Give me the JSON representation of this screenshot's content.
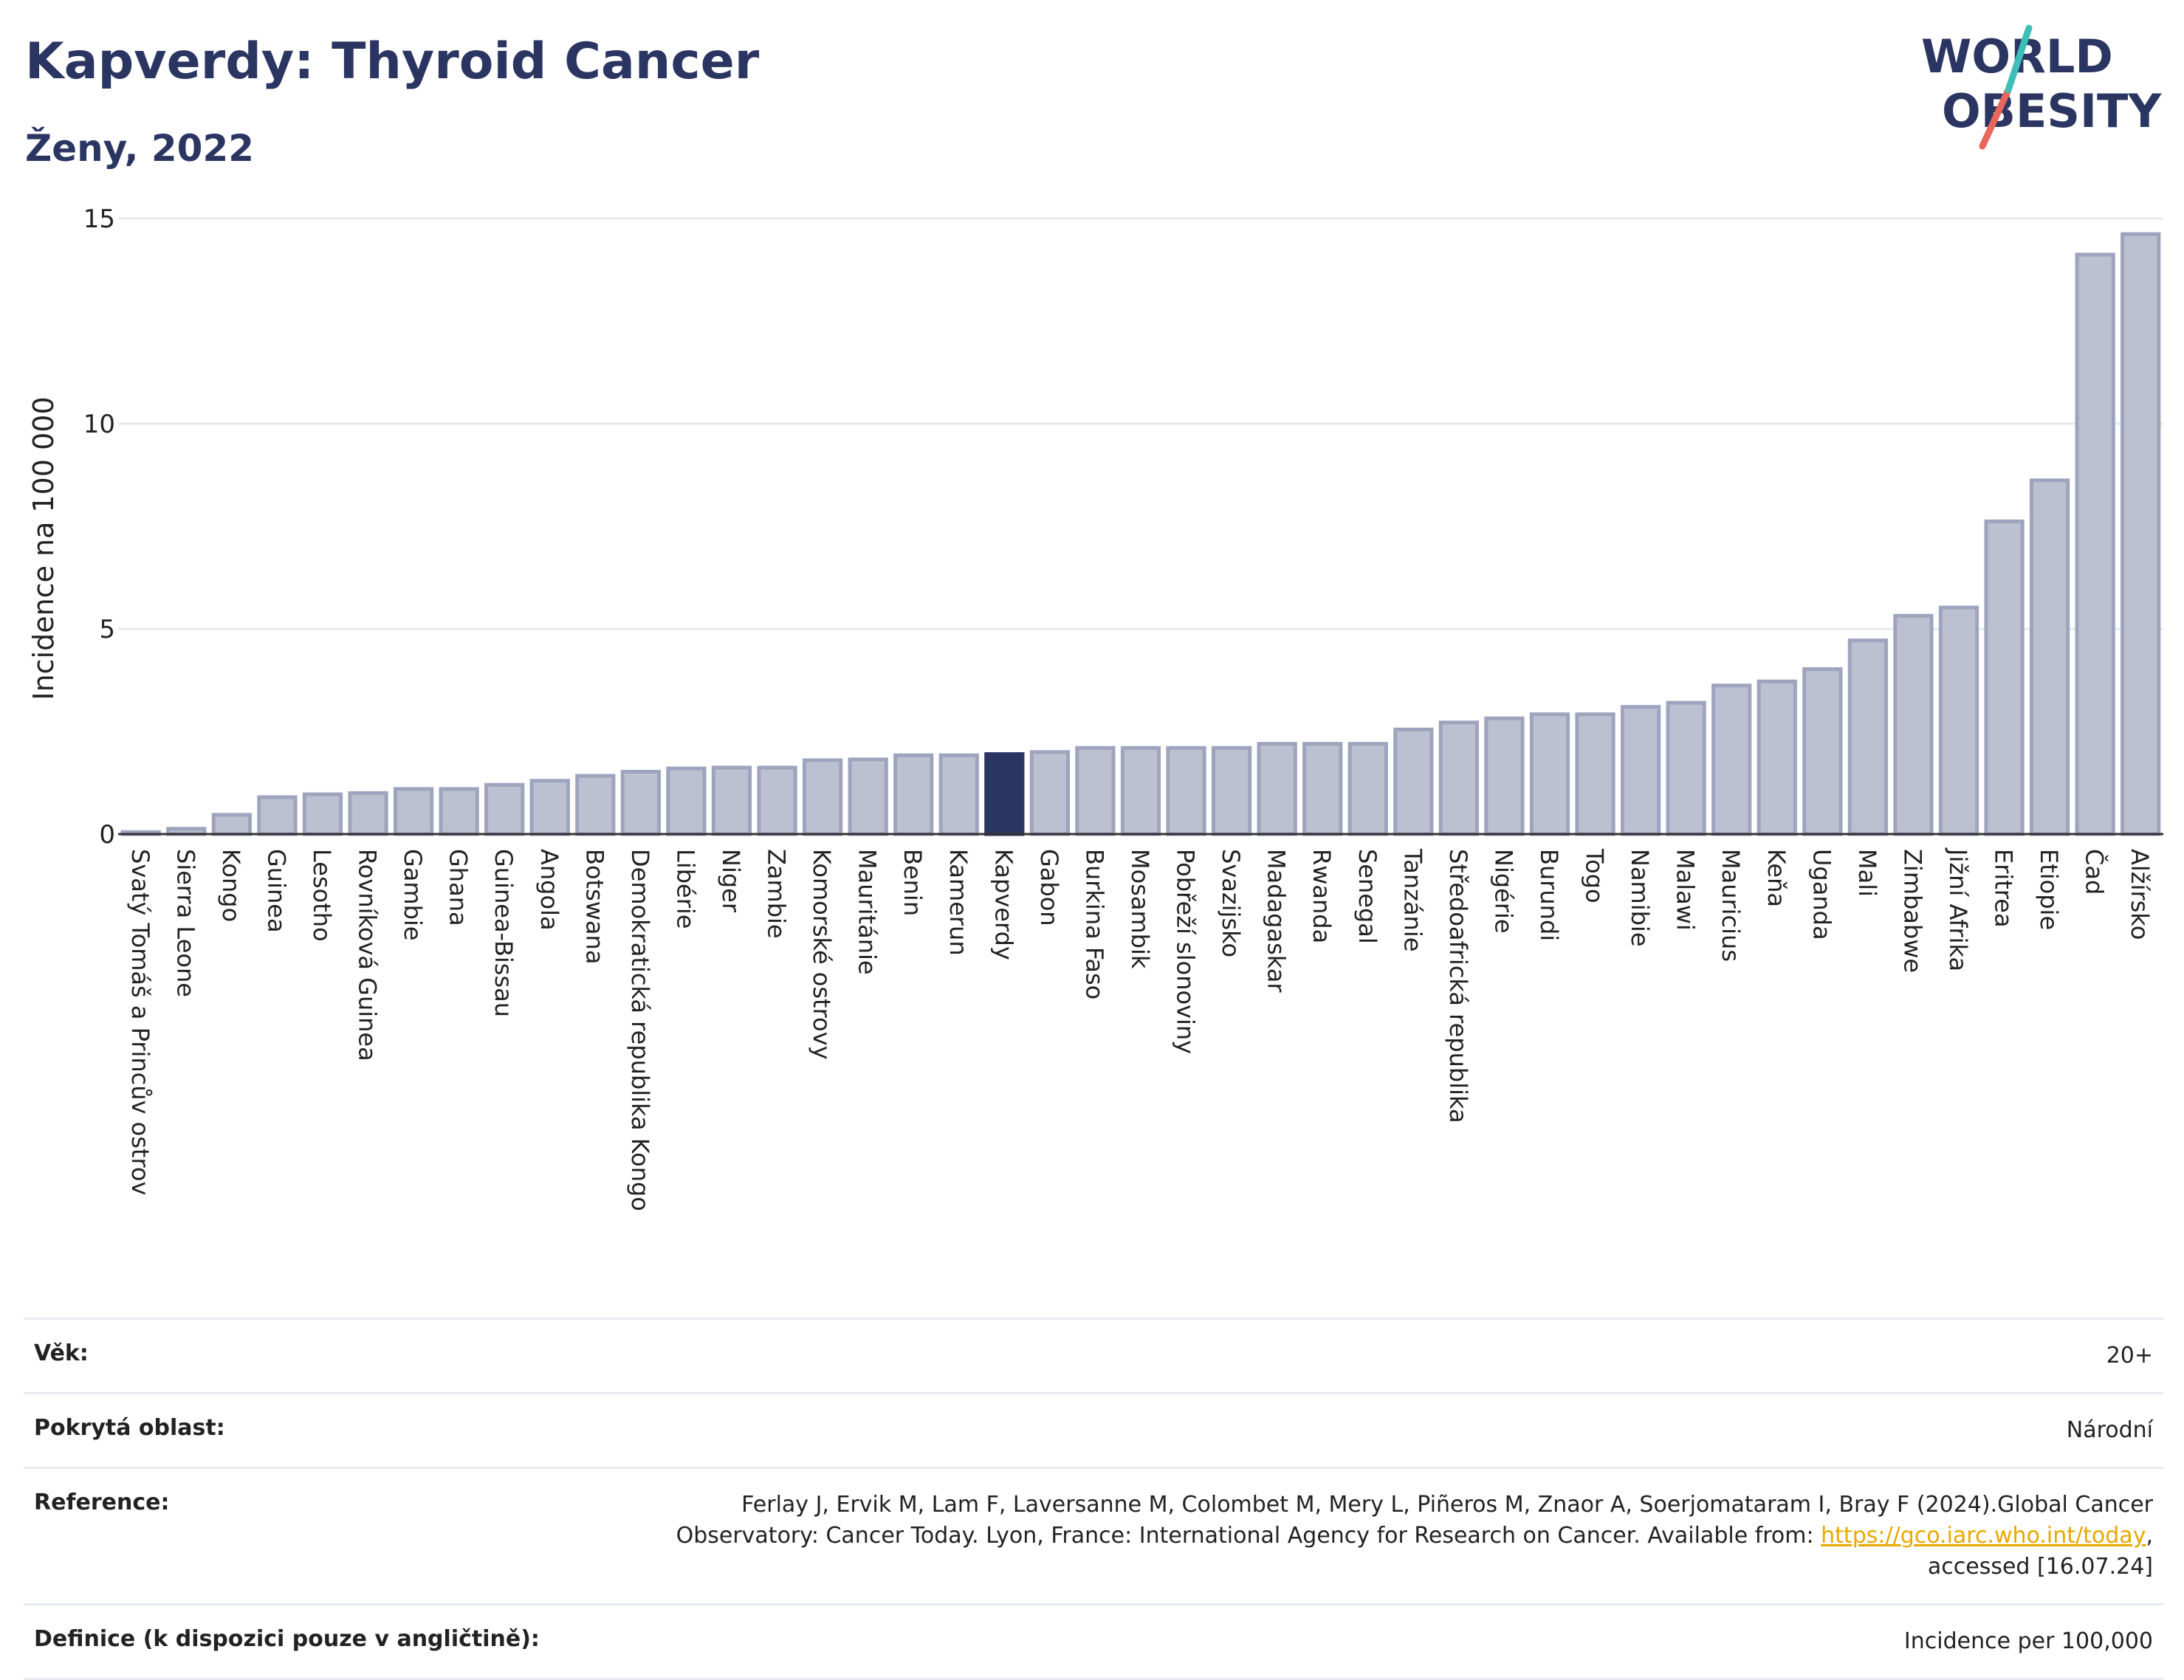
{
  "header": {
    "title": "Kapverdy: Thyroid Cancer",
    "subtitle": "Ženy, 2022",
    "logo_text_1": "WORLD",
    "logo_text_2": "OBESITY"
  },
  "chart_data": {
    "type": "bar",
    "ylabel": "Incidence na 100 000",
    "ylim": [
      0,
      15
    ],
    "yticks": [
      0,
      5,
      10,
      15
    ],
    "grid": true,
    "highlight": "Kapverdy",
    "highlight_color": "#2b3562",
    "bar_color": "#bcc0d0",
    "bar_edge_color": "#9ea4bd",
    "categories": [
      "Svatý Tomáš a Princův ostrov",
      "Sierra Leone",
      "Kongo",
      "Guinea",
      "Lesotho",
      "Rovníková Guinea",
      "Gambie",
      "Ghana",
      "Guinea-Bissau",
      "Angola",
      "Botswana",
      "Demokratická republika Kongo",
      "Libérie",
      "Niger",
      "Zambie",
      "Komorské ostrovy",
      "Mauritánie",
      "Benin",
      "Kamerun",
      "Kapverdy",
      "Gabon",
      "Burkina Faso",
      "Mosambik",
      "Pobřeží slonoviny",
      "Svazijsko",
      "Madagaskar",
      "Rwanda",
      "Senegal",
      "Tanzánie",
      "Středoafrická republika",
      "Nigérie",
      "Burundi",
      "Togo",
      "Namibie",
      "Malawi",
      "Mauricius",
      "Keňa",
      "Uganda",
      "Mali",
      "Zimbabwe",
      "Jižní Afrika",
      "Eritrea",
      "Etiopie",
      "Čad",
      "Alžírsko"
    ],
    "values": [
      0.05,
      0.13,
      0.47,
      0.9,
      0.97,
      1.0,
      1.1,
      1.1,
      1.2,
      1.3,
      1.42,
      1.52,
      1.6,
      1.62,
      1.62,
      1.8,
      1.82,
      1.92,
      1.92,
      1.95,
      2.0,
      2.1,
      2.1,
      2.1,
      2.1,
      2.2,
      2.2,
      2.2,
      2.55,
      2.72,
      2.82,
      2.92,
      2.92,
      3.1,
      3.2,
      3.62,
      3.72,
      4.02,
      4.72,
      5.32,
      5.52,
      7.62,
      8.62,
      14.12,
      14.62
    ]
  },
  "info": {
    "age_label": "Věk:",
    "age_value": "20+",
    "area_label": "Pokrytá oblast:",
    "area_value": "Národní",
    "ref_label": "Reference:",
    "ref_text_1": "Ferlay J, Ervik M, Lam F, Laversanne M, Colombet M, Mery L, Piñeros M, Znaor A, Soerjomataram I, Bray F (2024).Global Cancer",
    "ref_text_2": "Observatory: Cancer Today. Lyon, France: International Agency for Research on Cancer. Available from: ",
    "ref_link": "https://gco.iarc.who.int/today",
    "ref_text_3": ",",
    "ref_text_4": "accessed [16.07.24]",
    "def_label": "Definice (k dispozici pouze v angličtině):",
    "def_value": "Incidence per 100,000"
  }
}
